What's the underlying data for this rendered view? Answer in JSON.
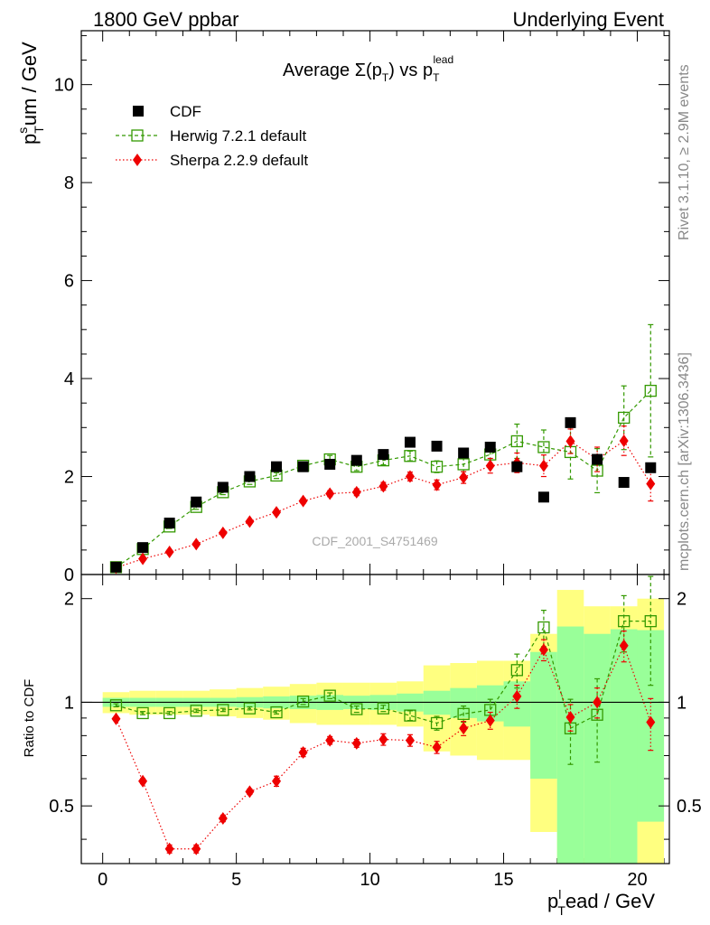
{
  "header": {
    "left": "1800 GeV ppbar",
    "right": "Underlying Event"
  },
  "side": {
    "rivet": "Rivet 3.1.10, ≥ 2.9M events",
    "mcplots": "mcplots.cern.ch [arXiv:1306.3436]"
  },
  "watermark": "CDF_2001_S4751469",
  "chart_data": [
    {
      "type": "scatter",
      "title_main": "Average Σ(p",
      "title_sub1": "T",
      "title_mid": ") vs p",
      "title_sub2": "T",
      "title_sup2": "lead",
      "ylabel_main": "p",
      "ylabel_sup": "s",
      "ylabel_sub": "T",
      "ylabel_rest": "um / GeV",
      "xlim": [
        -0.8,
        21.2
      ],
      "ylim": [
        0,
        11.1
      ],
      "yticks": [
        0,
        2,
        4,
        6,
        8,
        10
      ],
      "legend_position": "top-left",
      "series": [
        {
          "name": "CDF",
          "color": "#000000",
          "marker": "filled-square",
          "x": [
            0.5,
            1.5,
            2.5,
            3.5,
            4.5,
            5.5,
            6.5,
            7.5,
            8.5,
            9.5,
            10.5,
            11.5,
            12.5,
            13.5,
            14.5,
            15.5,
            16.5,
            17.5,
            18.5,
            19.5,
            20.5
          ],
          "y": [
            0.15,
            0.55,
            1.05,
            1.48,
            1.78,
            2.0,
            2.2,
            2.2,
            2.25,
            2.33,
            2.45,
            2.7,
            2.62,
            2.48,
            2.6,
            2.2,
            1.58,
            3.1,
            2.35,
            1.88,
            2.18
          ]
        },
        {
          "name": "Herwig 7.2.1 default",
          "color": "#339900",
          "marker": "open-square",
          "x": [
            0.5,
            1.5,
            2.5,
            3.5,
            4.5,
            5.5,
            6.5,
            7.5,
            8.5,
            9.5,
            10.5,
            11.5,
            12.5,
            13.5,
            14.5,
            15.5,
            16.5,
            17.5,
            18.5,
            19.5,
            20.5
          ],
          "y": [
            0.15,
            0.52,
            0.98,
            1.38,
            1.68,
            1.9,
            2.02,
            2.22,
            2.35,
            2.2,
            2.33,
            2.42,
            2.2,
            2.25,
            2.45,
            2.72,
            2.6,
            2.5,
            2.12,
            3.2,
            3.75
          ],
          "err": [
            0.02,
            0.03,
            0.04,
            0.05,
            0.05,
            0.06,
            0.06,
            0.07,
            0.08,
            0.08,
            0.09,
            0.1,
            0.12,
            0.15,
            0.2,
            0.35,
            0.35,
            0.55,
            0.45,
            0.65,
            1.35
          ]
        },
        {
          "name": "Sherpa 2.2.9 default",
          "color": "#ee0000",
          "marker": "filled-diamond",
          "x": [
            0.5,
            1.5,
            2.5,
            3.5,
            4.5,
            5.5,
            6.5,
            7.5,
            8.5,
            9.5,
            10.5,
            11.5,
            12.5,
            13.5,
            14.5,
            15.5,
            16.5,
            17.5,
            18.5,
            19.5,
            20.5
          ],
          "y": [
            0.14,
            0.32,
            0.46,
            0.62,
            0.85,
            1.08,
            1.27,
            1.5,
            1.65,
            1.68,
            1.8,
            2.0,
            1.83,
            1.98,
            2.22,
            2.28,
            2.22,
            2.72,
            2.35,
            2.73,
            1.85
          ],
          "err": [
            0.01,
            0.02,
            0.02,
            0.03,
            0.03,
            0.04,
            0.05,
            0.05,
            0.06,
            0.07,
            0.08,
            0.09,
            0.1,
            0.12,
            0.15,
            0.2,
            0.22,
            0.25,
            0.25,
            0.3,
            0.35
          ]
        }
      ]
    },
    {
      "type": "scatter",
      "ylabel": "Ratio to CDF",
      "xlabel_main": "p",
      "xlabel_sup": "l",
      "xlabel_sub": "T",
      "xlabel_rest": "ead / GeV",
      "xlim": [
        -0.8,
        21.2
      ],
      "ylim": [
        0.34,
        2.35
      ],
      "yticks": [
        0.5,
        1,
        2
      ],
      "xticks": [
        0,
        5,
        10,
        15,
        20
      ],
      "band_x_edges": [
        0,
        1,
        2,
        3,
        4,
        5,
        6,
        7,
        8,
        9,
        10,
        11,
        12,
        13,
        14,
        15,
        16,
        17,
        18,
        19,
        20,
        21
      ],
      "band_inner": {
        "color": "#99ff99",
        "lo": [
          0.97,
          0.97,
          0.97,
          0.97,
          0.97,
          0.965,
          0.96,
          0.955,
          0.95,
          0.955,
          0.95,
          0.94,
          0.92,
          0.9,
          0.88,
          0.85,
          0.6,
          0.34,
          0.34,
          0.34,
          0.45
        ],
        "hi": [
          1.03,
          1.03,
          1.03,
          1.03,
          1.03,
          1.035,
          1.04,
          1.045,
          1.05,
          1.045,
          1.05,
          1.06,
          1.08,
          1.1,
          1.12,
          1.15,
          1.4,
          1.66,
          1.58,
          1.63,
          1.62
        ]
      },
      "band_outer": {
        "color": "#ffff80",
        "lo": [
          0.93,
          0.92,
          0.92,
          0.92,
          0.91,
          0.9,
          0.89,
          0.87,
          0.86,
          0.86,
          0.86,
          0.85,
          0.72,
          0.7,
          0.68,
          0.68,
          0.42,
          0.34,
          0.34,
          0.34,
          0.34
        ],
        "hi": [
          1.07,
          1.08,
          1.08,
          1.08,
          1.09,
          1.1,
          1.11,
          1.13,
          1.14,
          1.14,
          1.14,
          1.15,
          1.28,
          1.3,
          1.32,
          1.32,
          1.58,
          2.12,
          1.9,
          1.9,
          2.0
        ]
      },
      "series": [
        {
          "name": "Herwig 7.2.1 default",
          "color": "#339900",
          "marker": "open-square",
          "x": [
            0.5,
            1.5,
            2.5,
            3.5,
            4.5,
            5.5,
            6.5,
            7.5,
            8.5,
            9.5,
            10.5,
            11.5,
            12.5,
            13.5,
            14.5,
            15.5,
            16.5,
            17.5,
            18.5,
            19.5,
            20.5
          ],
          "y": [
            0.98,
            0.93,
            0.93,
            0.945,
            0.95,
            0.96,
            0.935,
            1.005,
            1.045,
            0.955,
            0.96,
            0.915,
            0.87,
            0.925,
            0.95,
            1.24,
            1.65,
            0.84,
            0.92,
            1.72,
            1.72
          ],
          "err": [
            0.01,
            0.01,
            0.01,
            0.01,
            0.01,
            0.01,
            0.01,
            0.02,
            0.02,
            0.02,
            0.02,
            0.03,
            0.04,
            0.05,
            0.07,
            0.14,
            0.2,
            0.18,
            0.25,
            0.32,
            0.6
          ]
        },
        {
          "name": "Sherpa 2.2.9 default",
          "color": "#ee0000",
          "marker": "filled-diamond",
          "x": [
            0.5,
            1.5,
            2.5,
            3.5,
            4.5,
            5.5,
            6.5,
            7.5,
            8.5,
            9.5,
            10.5,
            11.5,
            12.5,
            13.5,
            14.5,
            15.5,
            16.5,
            17.5,
            18.5,
            19.5,
            20.5
          ],
          "y": [
            0.895,
            0.59,
            0.375,
            0.375,
            0.46,
            0.55,
            0.59,
            0.715,
            0.775,
            0.76,
            0.78,
            0.775,
            0.74,
            0.84,
            0.885,
            1.04,
            1.42,
            0.905,
            1.0,
            1.46,
            0.875
          ],
          "err": [
            0.01,
            0.01,
            0.01,
            0.01,
            0.01,
            0.01,
            0.02,
            0.02,
            0.02,
            0.02,
            0.03,
            0.03,
            0.03,
            0.04,
            0.05,
            0.08,
            0.1,
            0.08,
            0.1,
            0.15,
            0.15
          ]
        }
      ]
    }
  ]
}
